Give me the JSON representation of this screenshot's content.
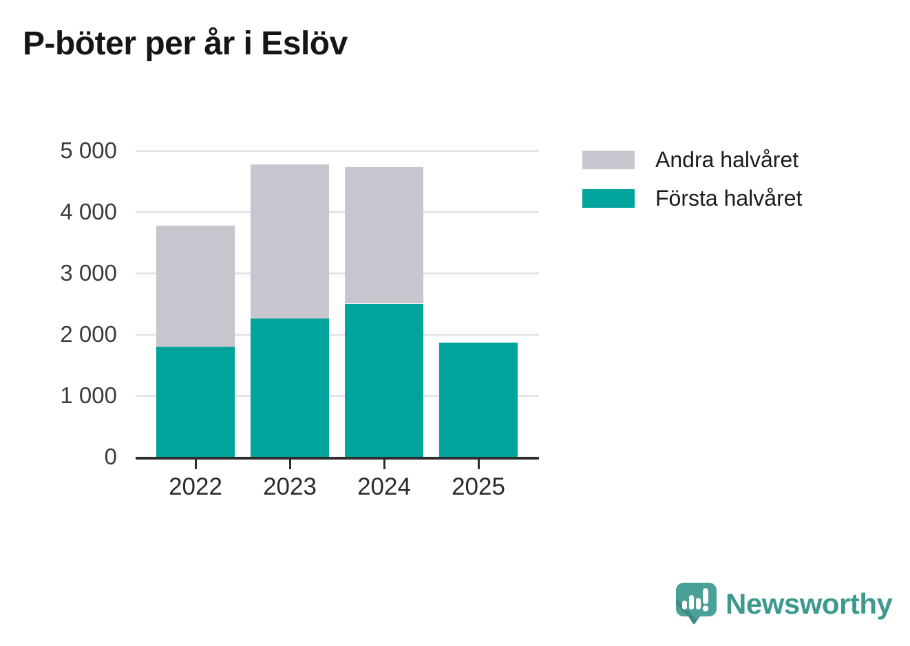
{
  "title": "P-böter per år i Eslöv",
  "chart_data": {
    "type": "bar",
    "stacked": true,
    "title": "P-böter per år i Eslöv",
    "categories": [
      "2022",
      "2023",
      "2024",
      "2025"
    ],
    "series": [
      {
        "name": "Första halvåret",
        "color": "#00a49a",
        "values": [
          1800,
          2260,
          2500,
          1870
        ]
      },
      {
        "name": "Andra halvåret",
        "color": "#c7c5cd",
        "values": [
          1980,
          2510,
          2230,
          0
        ]
      }
    ],
    "totals": [
      3780,
      4770,
      4730,
      1870
    ],
    "xlabel": "",
    "ylabel": "",
    "ylim": [
      0,
      5000
    ],
    "yticks": [
      {
        "value": 5000,
        "label": "5 000"
      },
      {
        "value": 4000,
        "label": "4 000"
      },
      {
        "value": 3000,
        "label": "3 000"
      },
      {
        "value": 2000,
        "label": "2 000"
      },
      {
        "value": 1000,
        "label": "1 000"
      },
      {
        "value": 0,
        "label": "0"
      }
    ],
    "grid": true,
    "legend_position": "top-right"
  },
  "legend": {
    "items": [
      {
        "label": "Andra halvåret",
        "color": "#c7c5cd"
      },
      {
        "label": "Första halvåret",
        "color": "#00a49a"
      }
    ]
  },
  "footer": {
    "brand": "Newsworthy",
    "brand_color": "#3d998e",
    "logo_color": "#49a096"
  }
}
